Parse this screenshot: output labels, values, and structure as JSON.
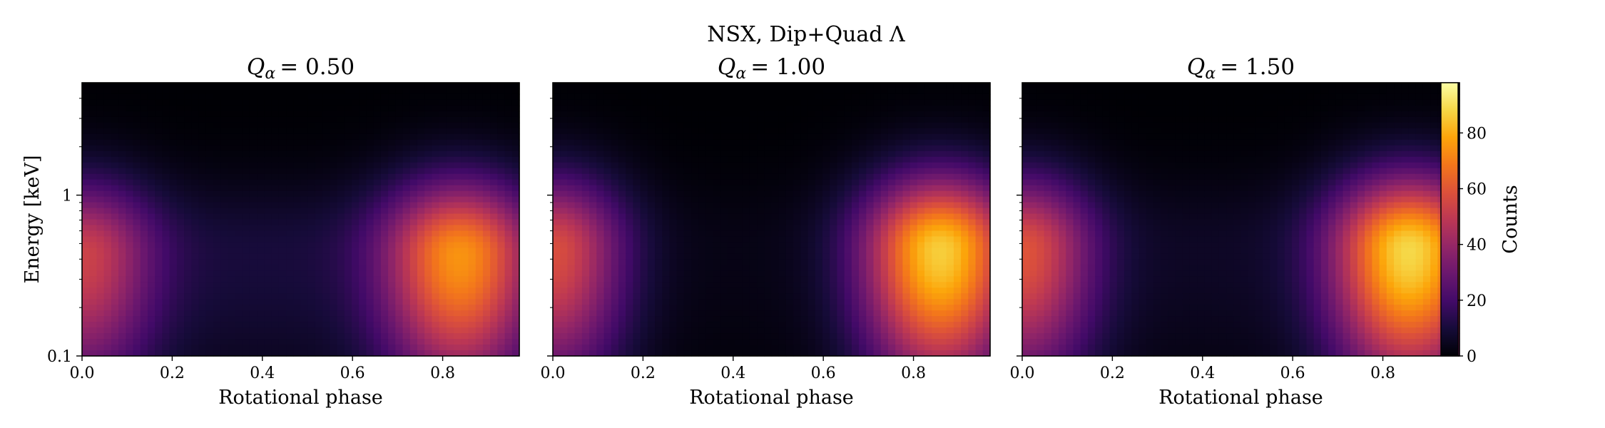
{
  "chart_data": {
    "type": "heatmap",
    "suptitle": "NSX, Dip+Quad Λ",
    "colormap": "inferno",
    "xlabel": "Rotational phase",
    "ylabel": "Energy [keV]",
    "yscale": "log",
    "ylim": [
      0.1,
      5.0
    ],
    "xlim": [
      0.0,
      0.97
    ],
    "x_ticks": [
      0.0,
      0.2,
      0.4,
      0.6,
      0.8
    ],
    "x_tick_labels": [
      "0.0",
      "0.2",
      "0.4",
      "0.6",
      "0.8"
    ],
    "y_tick_labels": [
      "0.1",
      "1"
    ],
    "y_ticks": [
      0.1,
      1
    ],
    "colorbar": {
      "label": "Counts",
      "range": [
        0,
        98
      ],
      "ticks": [
        0,
        20,
        40,
        60,
        80
      ],
      "tick_labels": [
        "0",
        "20",
        "40",
        "60",
        "80"
      ]
    },
    "panels": [
      {
        "title_var": "Q",
        "title_sub": "α",
        "title_value": "= 0.50",
        "peak_energy_kev": 0.42,
        "secondary_peak": {
          "phase": 0.0,
          "counts": 48
        },
        "primary_peak": {
          "phase": 0.84,
          "counts": 70
        },
        "minimum": {
          "phase": 0.4,
          "counts": 8
        }
      },
      {
        "title_var": "Q",
        "title_sub": "α",
        "title_value": "= 1.00",
        "peak_energy_kev": 0.45,
        "secondary_peak": {
          "phase": 0.0,
          "counts": 55
        },
        "primary_peak": {
          "phase": 0.86,
          "counts": 84
        },
        "minimum": {
          "phase": 0.45,
          "counts": 1
        }
      },
      {
        "title_var": "Q",
        "title_sub": "α",
        "title_value": "= 1.50",
        "peak_energy_kev": 0.45,
        "secondary_peak": {
          "phase": 0.0,
          "counts": 56
        },
        "primary_peak": {
          "phase": 0.86,
          "counts": 85
        },
        "minimum": {
          "phase": 0.45,
          "counts": 4
        }
      }
    ]
  }
}
